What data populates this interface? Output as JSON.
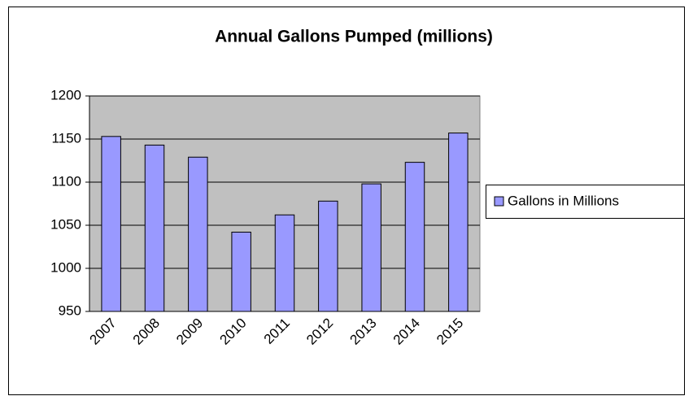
{
  "chart_data": {
    "type": "bar",
    "title": "Annual Gallons Pumped (millions)",
    "categories": [
      "2007",
      "2008",
      "2009",
      "2010",
      "2011",
      "2012",
      "2013",
      "2014",
      "2015"
    ],
    "series": [
      {
        "name": "Gallons in Millions",
        "color": "#9999ff",
        "values": [
          1153,
          1143,
          1129,
          1042,
          1062,
          1078,
          1098,
          1123,
          1157
        ]
      }
    ],
    "ylim": [
      950,
      1200
    ],
    "yticks": [
      950,
      1000,
      1050,
      1100,
      1150,
      1200
    ],
    "grid": true,
    "legend": "right"
  }
}
